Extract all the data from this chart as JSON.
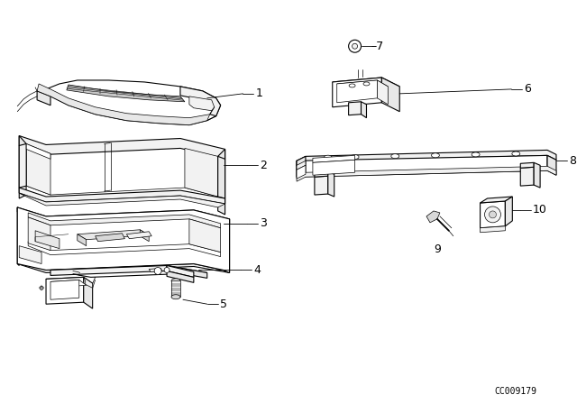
{
  "background_color": "#ffffff",
  "line_color": "#000000",
  "catalog_number": "CC009179",
  "fig_width": 6.4,
  "fig_height": 4.48,
  "dpi": 100,
  "lw_main": 0.8,
  "lw_thin": 0.5,
  "lw_detail": 0.35,
  "fc_white": "#ffffff",
  "fc_light": "#f2f2f2",
  "fc_mid": "#e8e8e8",
  "fc_dark": "#d8d8d8"
}
